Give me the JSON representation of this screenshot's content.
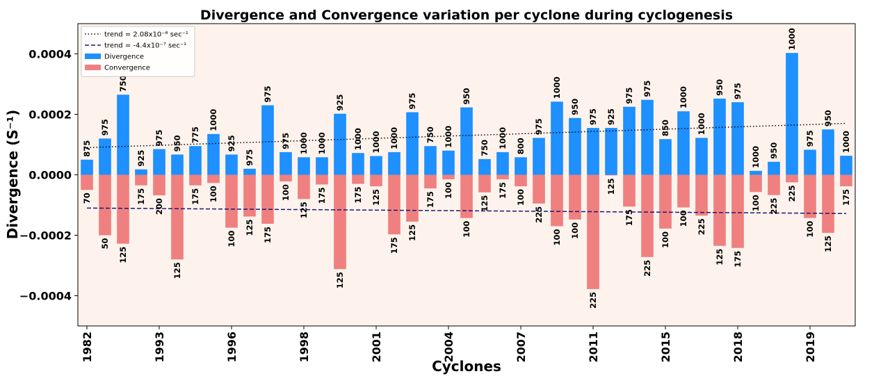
{
  "chart_data": {
    "type": "bar",
    "title": "Divergence and Convergence variation per cyclone during cyclogenesis",
    "xlabel": "Cyclones",
    "ylabel": "Divergence (S⁻¹)",
    "ylim": [
      -0.0005,
      0.0005
    ],
    "yticks": [
      -0.0004,
      -0.0002,
      0,
      0.0002,
      0.0004
    ],
    "ytick_labels": [
      "−0.0004",
      "−0.0002",
      "0.0000",
      "0.0002",
      "0.0004"
    ],
    "xtick_labels": [
      "1982",
      "1993",
      "1996",
      "1998",
      "2001",
      "2004",
      "2007",
      "2011",
      "2015",
      "2018",
      "2019"
    ],
    "xtick_positions": [
      0,
      4,
      8,
      12,
      16,
      20,
      24,
      28,
      32,
      36,
      40
    ],
    "background": "#fdf3ec",
    "legend": {
      "position": "top-left",
      "entries": [
        {
          "kind": "line",
          "style": "dotted",
          "color": "#000000",
          "label": "trend = 2.08x10⁻⁶ sec⁻¹"
        },
        {
          "kind": "line",
          "style": "dashed",
          "color": "#191970",
          "label": "trend = -4.4x10⁻⁷ sec⁻¹"
        },
        {
          "kind": "patch",
          "color": "#1e90ff",
          "label": "Divergence"
        },
        {
          "kind": "patch",
          "color": "#f08080",
          "label": "Convergence"
        }
      ]
    },
    "series": [
      {
        "name": "Divergence",
        "color": "#1e90ff",
        "values": [
          5e-05,
          0.00012,
          0.000265,
          1.8e-05,
          8.5e-05,
          6.7e-05,
          9.5e-05,
          0.000135,
          6.7e-05,
          2e-05,
          0.00023,
          7.5e-05,
          5.8e-05,
          5.8e-05,
          0.000202,
          7.2e-05,
          6.2e-05,
          7.5e-05,
          0.000207,
          9.5e-05,
          8e-05,
          0.000223,
          5.2e-05,
          7.5e-05,
          5.8e-05,
          0.000122,
          0.000242,
          0.000188,
          0.000155,
          0.000155,
          0.000225,
          0.000248,
          0.000118,
          0.00021,
          0.000122,
          0.000252,
          0.00024,
          1.3e-05,
          4.3e-05,
          0.000403,
          8.3e-05,
          0.00015,
          6.3e-05
        ],
        "labels": [
          "875",
          "975",
          "750",
          "925",
          "975",
          "950",
          "775",
          "1000",
          "925",
          "975",
          "975",
          "975",
          "1000",
          "1000",
          "925",
          "1000",
          "1000",
          "1000",
          "975",
          "750",
          "1000",
          "950",
          "750",
          "1000",
          "800",
          "975",
          "1000",
          "950",
          "975",
          "925",
          "975",
          "975",
          "850",
          "1000",
          "1000",
          "950",
          "975",
          "1000",
          "950",
          "1000",
          "975",
          "950",
          "1000"
        ]
      },
      {
        "name": "Convergence",
        "color": "#f08080",
        "values": [
          -5e-05,
          -0.0002,
          -0.000228,
          -3.5e-05,
          -6.8e-05,
          -0.00028,
          -3.5e-05,
          -2.7e-05,
          -0.000175,
          -0.000138,
          -0.000162,
          -2.2e-05,
          -8e-05,
          -3.2e-05,
          -0.000312,
          -3e-05,
          -3.8e-05,
          -0.000197,
          -0.000155,
          -4.5e-05,
          -1.5e-05,
          -0.000143,
          -5.8e-05,
          -1.5e-05,
          -3.8e-05,
          -9.5e-05,
          -0.00017,
          -0.000148,
          -0.000378,
          -2e-06,
          -0.000105,
          -0.000272,
          -0.000178,
          -0.000108,
          -0.000135,
          -0.000235,
          -0.000242,
          -5.7e-05,
          -6.7e-05,
          -2.5e-05,
          -0.000143,
          -0.000192,
          -3.8e-05
        ],
        "labels": [
          "70",
          "50",
          "125",
          "175",
          "200",
          "125",
          "175",
          "100",
          "100",
          "125",
          "175",
          "100",
          "125",
          "175",
          "125",
          "175",
          "125",
          "175",
          "125",
          "175",
          "100",
          "100",
          "125",
          "175",
          "100",
          "225",
          "100",
          "100",
          "225",
          "125",
          "175",
          "225",
          "100",
          "100",
          "225",
          "125",
          "175",
          "100",
          "225",
          "225",
          "100",
          "125",
          "175"
        ]
      }
    ],
    "trends": [
      {
        "name": "trend = 2.08x10⁻⁶ sec⁻¹",
        "style": "dotted",
        "color": "#000000",
        "start": 9e-05,
        "end": 0.00017
      },
      {
        "name": "trend = -4.4x10⁻⁷ sec⁻¹",
        "style": "dashed",
        "color": "#191970",
        "start": -0.00011,
        "end": -0.000128
      }
    ]
  }
}
